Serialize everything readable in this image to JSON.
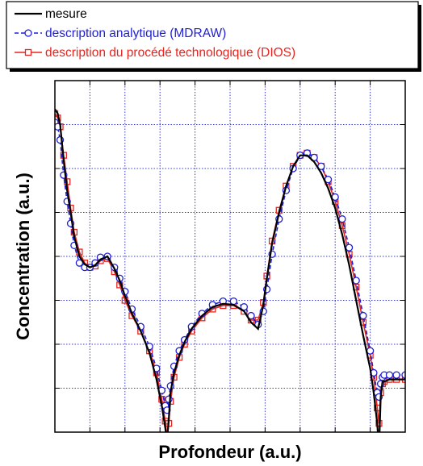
{
  "chart_data": {
    "type": "line",
    "title": "",
    "xlabel": "Profondeur (a.u.)",
    "ylabel": "Concentration (a.u.)",
    "xlim": [
      0,
      10
    ],
    "ylim": [
      0,
      8
    ],
    "x_ticks": [
      0,
      1,
      2,
      3,
      4,
      5,
      6,
      7,
      8,
      9,
      10
    ],
    "y_ticks": [
      0,
      1,
      2,
      3,
      4,
      5,
      6,
      7,
      8
    ],
    "grid": true,
    "legend_position": "top",
    "series": [
      {
        "name": "mesure",
        "color": "#000000",
        "dash": "solid",
        "marker": "none",
        "x": [
          0.0,
          0.08,
          0.15,
          0.25,
          0.35,
          0.45,
          0.55,
          0.7,
          0.85,
          1.0,
          1.15,
          1.3,
          1.5,
          1.7,
          1.85,
          2.0,
          2.2,
          2.45,
          2.7,
          2.9,
          3.05,
          3.15,
          3.2,
          3.25,
          3.3,
          3.4,
          3.55,
          3.7,
          3.9,
          4.2,
          4.5,
          4.8,
          5.1,
          5.4,
          5.6,
          5.8,
          5.95,
          6.05,
          6.2,
          6.4,
          6.6,
          6.8,
          7.0,
          7.2,
          7.4,
          7.6,
          7.8,
          8.0,
          8.2,
          8.4,
          8.6,
          8.8,
          9.0,
          9.1,
          9.2,
          9.25,
          9.3,
          9.35,
          9.4,
          9.55,
          9.75,
          10.0
        ],
        "y": [
          7.35,
          7.25,
          7.0,
          6.2,
          5.5,
          5.0,
          4.45,
          4.0,
          3.82,
          3.75,
          3.8,
          3.93,
          4.0,
          3.72,
          3.45,
          3.1,
          2.7,
          2.3,
          1.8,
          1.2,
          0.6,
          0.1,
          -0.2,
          0.3,
          0.9,
          1.35,
          1.75,
          2.05,
          2.35,
          2.65,
          2.85,
          2.92,
          2.9,
          2.75,
          2.5,
          2.35,
          2.9,
          3.5,
          4.3,
          5.0,
          5.6,
          6.05,
          6.3,
          6.3,
          6.15,
          5.9,
          5.55,
          5.1,
          4.5,
          3.8,
          3.0,
          2.2,
          1.45,
          0.9,
          0.2,
          -0.4,
          0.8,
          1.15,
          1.15,
          1.2,
          1.2,
          1.2
        ]
      },
      {
        "name": "description analytique (MDRAW)",
        "color": "#1f1fd6",
        "dash": "dashed",
        "marker": "circle",
        "x": [
          0.0,
          0.08,
          0.15,
          0.25,
          0.35,
          0.45,
          0.55,
          0.7,
          0.85,
          1.0,
          1.15,
          1.3,
          1.5,
          1.7,
          1.85,
          2.0,
          2.2,
          2.45,
          2.7,
          2.9,
          3.05,
          3.15,
          3.2,
          3.25,
          3.3,
          3.4,
          3.55,
          3.7,
          3.9,
          4.2,
          4.5,
          4.8,
          5.1,
          5.4,
          5.6,
          5.8,
          5.95,
          6.05,
          6.2,
          6.4,
          6.6,
          6.8,
          7.0,
          7.2,
          7.4,
          7.6,
          7.8,
          8.0,
          8.2,
          8.4,
          8.6,
          8.8,
          9.0,
          9.1,
          9.2,
          9.25,
          9.3,
          9.35,
          9.4,
          9.55,
          9.75,
          10.0
        ],
        "y": [
          7.05,
          6.95,
          6.65,
          5.85,
          5.25,
          4.75,
          4.25,
          3.85,
          3.75,
          3.75,
          3.85,
          3.98,
          4.0,
          3.75,
          3.5,
          3.2,
          2.8,
          2.4,
          1.95,
          1.45,
          0.95,
          0.6,
          0.5,
          0.75,
          1.05,
          1.5,
          1.85,
          2.1,
          2.4,
          2.7,
          2.9,
          2.98,
          2.98,
          2.85,
          2.65,
          2.45,
          2.75,
          3.25,
          4.05,
          4.85,
          5.5,
          6.0,
          6.3,
          6.35,
          6.25,
          6.05,
          5.75,
          5.35,
          4.85,
          4.2,
          3.45,
          2.65,
          1.85,
          1.35,
          0.9,
          0.8,
          1.1,
          1.25,
          1.3,
          1.3,
          1.3,
          1.3
        ]
      },
      {
        "name": "description du procédé technologique (DIOS)",
        "color": "#e5251f",
        "dash": "solid",
        "marker": "square",
        "x": [
          0.0,
          0.08,
          0.15,
          0.25,
          0.35,
          0.45,
          0.55,
          0.7,
          0.85,
          1.0,
          1.15,
          1.3,
          1.5,
          1.7,
          1.85,
          2.0,
          2.2,
          2.45,
          2.7,
          2.9,
          3.05,
          3.15,
          3.2,
          3.25,
          3.3,
          3.4,
          3.55,
          3.7,
          3.9,
          4.2,
          4.5,
          4.8,
          5.1,
          5.4,
          5.6,
          5.8,
          5.95,
          6.05,
          6.2,
          6.4,
          6.6,
          6.8,
          7.0,
          7.2,
          7.4,
          7.6,
          7.8,
          8.0,
          8.2,
          8.4,
          8.6,
          8.8,
          9.0,
          9.1,
          9.2,
          9.25,
          9.3,
          9.35,
          9.4,
          9.55,
          9.75,
          10.0
        ],
        "y": [
          7.25,
          7.15,
          6.95,
          6.3,
          5.7,
          5.1,
          4.55,
          4.1,
          3.85,
          3.75,
          3.78,
          3.9,
          3.95,
          3.65,
          3.35,
          3.0,
          2.65,
          2.3,
          1.85,
          1.35,
          0.75,
          0.25,
          -0.1,
          0.2,
          0.7,
          1.25,
          1.7,
          2.0,
          2.3,
          2.6,
          2.8,
          2.88,
          2.88,
          2.75,
          2.55,
          2.55,
          2.95,
          3.55,
          4.35,
          5.05,
          5.6,
          6.05,
          6.3,
          6.35,
          6.25,
          6.05,
          5.7,
          5.25,
          4.7,
          4.05,
          3.3,
          2.5,
          1.75,
          1.25,
          0.55,
          0.2,
          0.9,
          1.1,
          1.15,
          1.2,
          1.2,
          1.2
        ]
      }
    ]
  }
}
